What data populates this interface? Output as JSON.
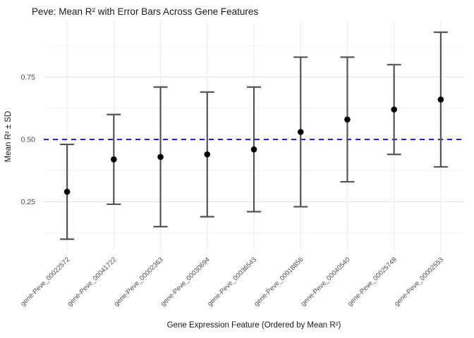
{
  "page": {
    "background": "#ffffff"
  },
  "chart_data": {
    "type": "scatter",
    "title": "Peve: Mean R² with Error Bars Across Gene Features",
    "xlabel": "Gene Expression Feature (Ordered by Mean R²)",
    "ylabel": "Mean R² ± SD",
    "categories": [
      "gene-Peve_00022572",
      "gene-Peve_00041722",
      "gene-Peve_00002363",
      "gene-Peve_00030694",
      "gene-Peve_00036543",
      "gene-Peve_00018856",
      "gene-Peve_00040540",
      "gene-Peve_00025748",
      "gene-Peve_00002553"
    ],
    "series": [
      {
        "name": "Mean R²",
        "values": [
          0.29,
          0.42,
          0.43,
          0.44,
          0.46,
          0.53,
          0.58,
          0.62,
          0.66
        ]
      },
      {
        "name": "SD",
        "values": [
          0.19,
          0.18,
          0.28,
          0.25,
          0.25,
          0.3,
          0.25,
          0.18,
          0.27
        ]
      }
    ],
    "yticks": [
      0.25,
      0.5,
      0.75
    ],
    "ytick_labels": [
      "0.25",
      "0.50",
      "0.75"
    ],
    "minor_gridlines": [
      0.125,
      0.375,
      0.625,
      0.875
    ],
    "ylim": [
      0.05,
      0.96
    ],
    "grid": true,
    "legend": "none",
    "reference_line": {
      "y": 0.5,
      "style": "dashed",
      "color": "#0000ff"
    },
    "colors": {
      "point": "#000000",
      "errorbar": "#545454",
      "grid_major": "#e4e4e4",
      "grid_minor": "#f3f3f3",
      "grid_vertical": "#ebebeb",
      "reference": "#0000ff",
      "tick_label": "#4d4d4d",
      "text": "#1a1a1a",
      "background": "#ffffff"
    }
  }
}
